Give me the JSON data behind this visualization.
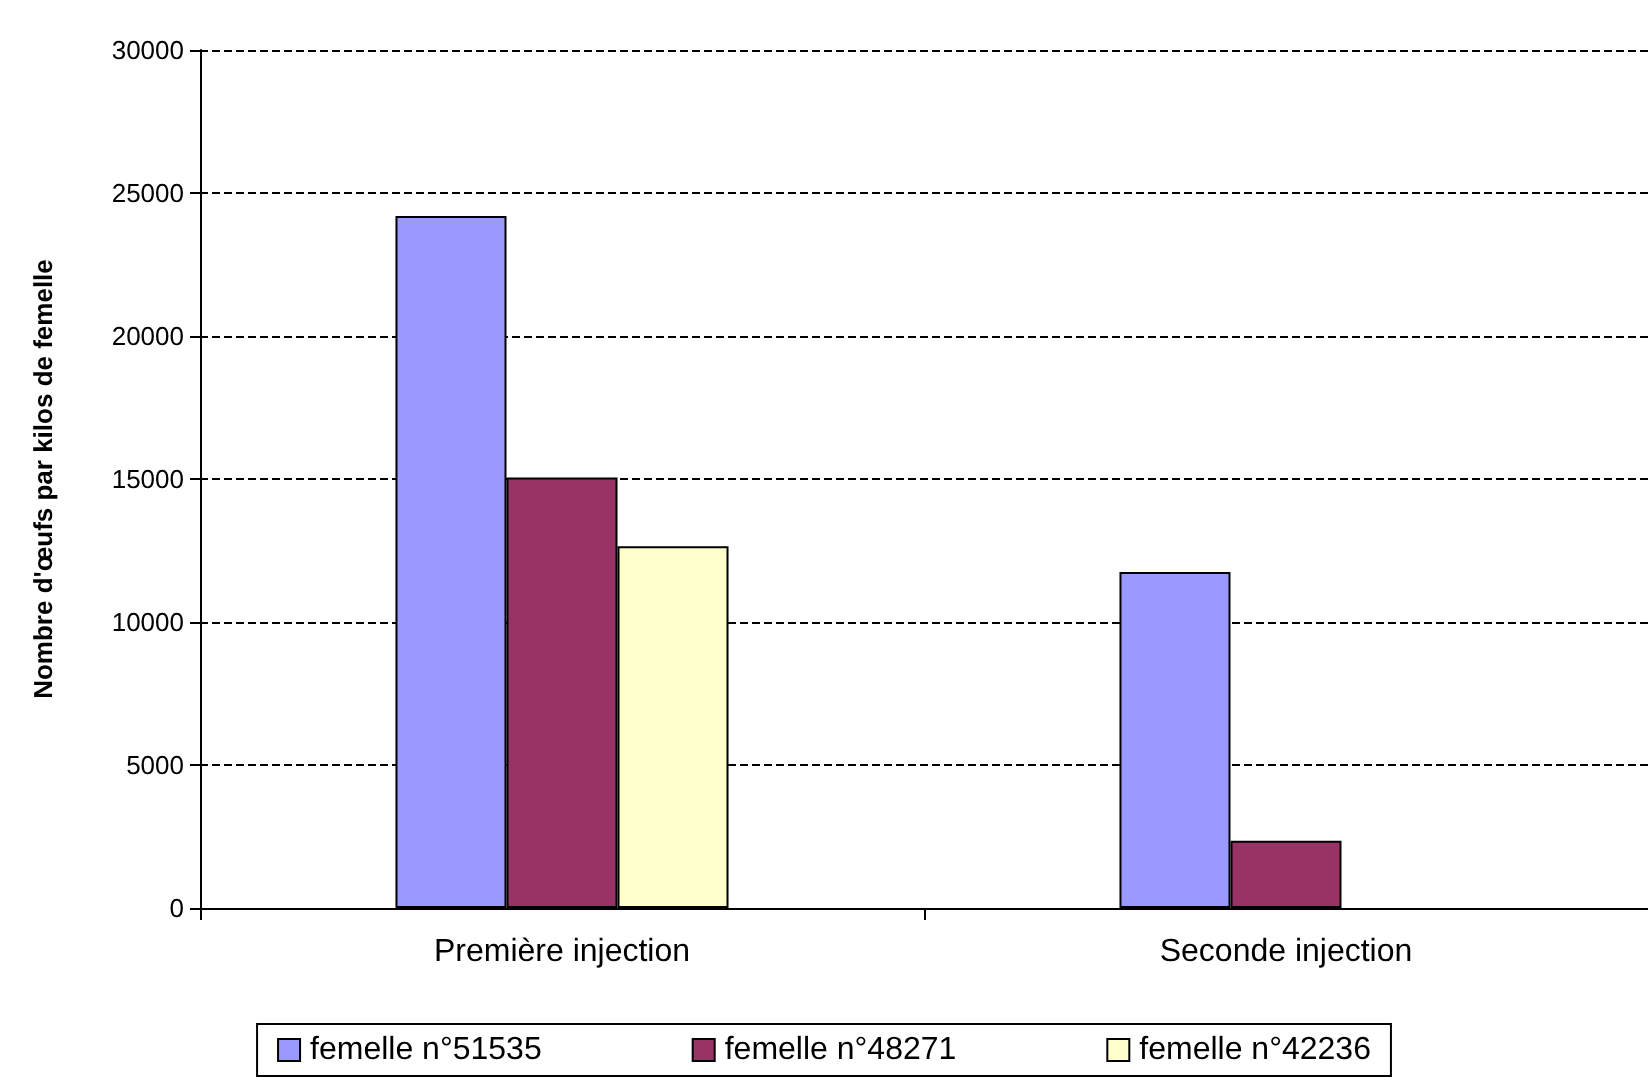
{
  "chart_data": {
    "type": "bar",
    "ylabel": "Nombre d'œufs par kilos de femelle",
    "categories": [
      "Première injection",
      "Seconde injection"
    ],
    "series": [
      {
        "name": "femelle n°51535",
        "color": "#9999ff",
        "values": [
          24200,
          11750
        ]
      },
      {
        "name": "femelle n°48271",
        "color": "#993366",
        "values": [
          15050,
          2350
        ]
      },
      {
        "name": "femelle n°42236",
        "color": "#ffffcc",
        "values": [
          12650,
          null
        ]
      }
    ],
    "ylim": [
      0,
      30000
    ],
    "yticks": [
      0,
      5000,
      10000,
      15000,
      20000,
      25000,
      30000
    ],
    "grid": "y",
    "legend": "bottom",
    "line_style": "dashed"
  }
}
